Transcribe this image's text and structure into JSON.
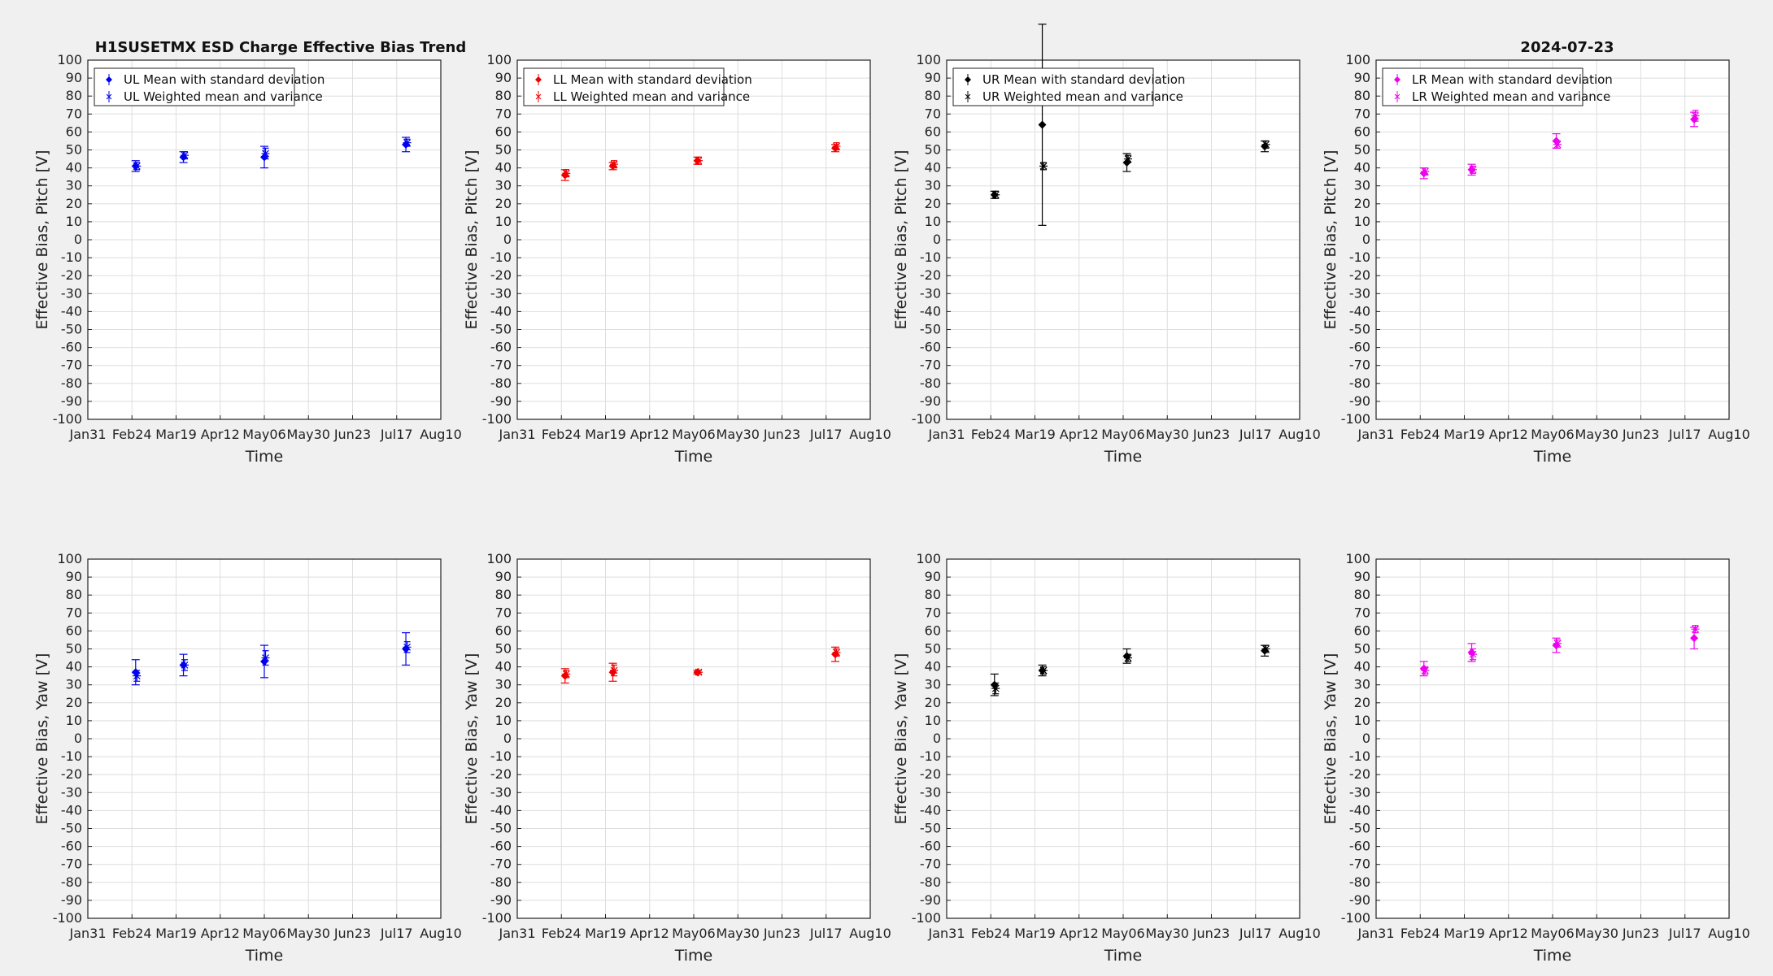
{
  "figure": {
    "title": "H1SUSETMX ESD Charge Effective Bias Trend",
    "date": "2024-07-23"
  },
  "colors": {
    "UL": "#0000ee",
    "LL": "#ee0000",
    "UR": "#000000",
    "LR": "#ee00ee"
  },
  "chart_data": [
    {
      "type": "scatter",
      "panel": "UL-pitch",
      "color": "#0000ee",
      "xlabel": "Time",
      "ylabel": "Effective Bias, Pitch [V]",
      "xlim": [
        "Jan31",
        "Aug10"
      ],
      "ylim": [
        -100,
        100
      ],
      "xticks": [
        "Jan31",
        "Feb24",
        "Mar19",
        "Apr12",
        "May06",
        "May30",
        "Jun23",
        "Jul17",
        "Aug10"
      ],
      "grid": true,
      "legend_position": "top-left",
      "series": [
        {
          "name": "UL Mean with standard deviation",
          "x": [
            "Feb26",
            "Mar23",
            "May06",
            "Jul22"
          ],
          "y": [
            41,
            46,
            46,
            53
          ],
          "err": [
            3,
            3,
            6,
            4
          ]
        },
        {
          "name": "UL Weighted mean and variance",
          "x": [
            "Feb26",
            "Mar23",
            "May06",
            "Jul22"
          ],
          "y": [
            41,
            47,
            48,
            54
          ],
          "err": [
            2,
            2,
            3,
            2
          ]
        }
      ]
    },
    {
      "type": "scatter",
      "panel": "LL-pitch",
      "color": "#ee0000",
      "xlabel": "Time",
      "ylabel": "Effective Bias, Pitch [V]",
      "xlim": [
        "Jan31",
        "Aug10"
      ],
      "ylim": [
        -100,
        100
      ],
      "xticks": [
        "Jan31",
        "Feb24",
        "Mar19",
        "Apr12",
        "May06",
        "May30",
        "Jun23",
        "Jul17",
        "Aug10"
      ],
      "grid": true,
      "legend_position": "top-left",
      "series": [
        {
          "name": "LL Mean with standard deviation",
          "x": [
            "Feb26",
            "Mar23",
            "May08",
            "Jul22"
          ],
          "y": [
            36,
            41,
            44,
            51
          ],
          "err": [
            3,
            2,
            2,
            2
          ]
        },
        {
          "name": "LL Weighted mean and variance",
          "x": [
            "Feb26",
            "Mar23",
            "May08",
            "Jul22"
          ],
          "y": [
            37,
            42,
            44,
            52
          ],
          "err": [
            2,
            2,
            2,
            2
          ]
        }
      ]
    },
    {
      "type": "scatter",
      "panel": "UR-pitch",
      "color": "#000000",
      "xlabel": "Time",
      "ylabel": "Effective Bias, Pitch [V]",
      "xlim": [
        "Jan31",
        "Aug10"
      ],
      "ylim": [
        -100,
        100
      ],
      "xticks": [
        "Jan31",
        "Feb24",
        "Mar19",
        "Apr12",
        "May06",
        "May30",
        "Jun23",
        "Jul17",
        "Aug10"
      ],
      "grid": true,
      "legend_position": "top-left",
      "series": [
        {
          "name": "UR Mean with standard deviation",
          "x": [
            "Feb26",
            "Mar23",
            "May08",
            "Jul22"
          ],
          "y": [
            25,
            64,
            43,
            52
          ],
          "err": [
            2,
            56,
            5,
            3
          ]
        },
        {
          "name": "UR Weighted mean and variance",
          "x": [
            "Feb26",
            "Mar23",
            "May08",
            "Jul22"
          ],
          "y": [
            25,
            41,
            45,
            53
          ],
          "err": [
            2,
            2,
            2,
            2
          ]
        }
      ]
    },
    {
      "type": "scatter",
      "panel": "LR-pitch",
      "color": "#ee00ee",
      "xlabel": "Time",
      "ylabel": "Effective Bias, Pitch [V]",
      "xlim": [
        "Jan31",
        "Aug10"
      ],
      "ylim": [
        -100,
        100
      ],
      "xticks": [
        "Jan31",
        "Feb24",
        "Mar19",
        "Apr12",
        "May06",
        "May30",
        "Jun23",
        "Jul17",
        "Aug10"
      ],
      "grid": true,
      "legend_position": "top-left",
      "series": [
        {
          "name": "LR Mean with standard deviation",
          "x": [
            "Feb26",
            "Mar23",
            "May08",
            "Jul22"
          ],
          "y": [
            37,
            39,
            55,
            67
          ],
          "err": [
            3,
            3,
            4,
            4
          ]
        },
        {
          "name": "LR Weighted mean and variance",
          "x": [
            "Feb26",
            "Mar23",
            "May08",
            "Jul22"
          ],
          "y": [
            38,
            39,
            53,
            69
          ],
          "err": [
            2,
            2,
            2,
            3
          ]
        }
      ]
    },
    {
      "type": "scatter",
      "panel": "UL-yaw",
      "color": "#0000ee",
      "xlabel": "Time",
      "ylabel": "Effective Bias, Yaw [V]",
      "xlim": [
        "Jan31",
        "Aug10"
      ],
      "ylim": [
        -100,
        100
      ],
      "xticks": [
        "Jan31",
        "Feb24",
        "Mar19",
        "Apr12",
        "May06",
        "May30",
        "Jun23",
        "Jul17",
        "Aug10"
      ],
      "grid": true,
      "series": [
        {
          "name": "UL Mean with standard deviation",
          "x": [
            "Feb26",
            "Mar23",
            "May06",
            "Jul22"
          ],
          "y": [
            37,
            41,
            43,
            50
          ],
          "err": [
            7,
            6,
            9,
            9
          ]
        },
        {
          "name": "UL Weighted mean and variance",
          "x": [
            "Feb26",
            "Mar23",
            "May06",
            "Jul22"
          ],
          "y": [
            35,
            41,
            45,
            51
          ],
          "err": [
            3,
            3,
            4,
            3
          ]
        }
      ]
    },
    {
      "type": "scatter",
      "panel": "LL-yaw",
      "color": "#ee0000",
      "xlabel": "Time",
      "ylabel": "Effective Bias, Yaw [V]",
      "xlim": [
        "Jan31",
        "Aug10"
      ],
      "ylim": [
        -100,
        100
      ],
      "xticks": [
        "Jan31",
        "Feb24",
        "Mar19",
        "Apr12",
        "May06",
        "May30",
        "Jun23",
        "Jul17",
        "Aug10"
      ],
      "grid": true,
      "series": [
        {
          "name": "LL Mean with standard deviation",
          "x": [
            "Feb26",
            "Mar23",
            "May08",
            "Jul22"
          ],
          "y": [
            35,
            37,
            37,
            47
          ],
          "err": [
            4,
            5,
            1,
            4
          ]
        },
        {
          "name": "LL Weighted mean and variance",
          "x": [
            "Feb26",
            "Mar23",
            "May08",
            "Jul22"
          ],
          "y": [
            36,
            38,
            37,
            48
          ],
          "err": [
            2,
            3,
            1,
            2
          ]
        }
      ]
    },
    {
      "type": "scatter",
      "panel": "UR-yaw",
      "color": "#000000",
      "xlabel": "Time",
      "ylabel": "Effective Bias, Yaw [V]",
      "xlim": [
        "Jan31",
        "Aug10"
      ],
      "ylim": [
        -100,
        100
      ],
      "xticks": [
        "Jan31",
        "Feb24",
        "Mar19",
        "Apr12",
        "May06",
        "May30",
        "Jun23",
        "Jul17",
        "Aug10"
      ],
      "grid": true,
      "series": [
        {
          "name": "UR Mean with standard deviation",
          "x": [
            "Feb26",
            "Mar23",
            "May08",
            "Jul22"
          ],
          "y": [
            30,
            38,
            46,
            49
          ],
          "err": [
            6,
            3,
            4,
            3
          ]
        },
        {
          "name": "UR Weighted mean and variance",
          "x": [
            "Feb26",
            "Mar23",
            "May08",
            "Jul22"
          ],
          "y": [
            28,
            38,
            45,
            50
          ],
          "err": [
            3,
            2,
            2,
            2
          ]
        }
      ]
    },
    {
      "type": "scatter",
      "panel": "LR-yaw",
      "color": "#ee00ee",
      "xlabel": "Time",
      "ylabel": "Effective Bias, Yaw [V]",
      "xlim": [
        "Jan31",
        "Aug10"
      ],
      "ylim": [
        -100,
        100
      ],
      "xticks": [
        "Jan31",
        "Feb24",
        "Mar19",
        "Apr12",
        "May06",
        "May30",
        "Jun23",
        "Jul17",
        "Aug10"
      ],
      "grid": true,
      "series": [
        {
          "name": "LR Mean with standard deviation",
          "x": [
            "Feb26",
            "Mar23",
            "May08",
            "Jul22"
          ],
          "y": [
            39,
            48,
            52,
            56
          ],
          "err": [
            4,
            5,
            4,
            6
          ]
        },
        {
          "name": "LR Weighted mean and variance",
          "x": [
            "Feb26",
            "Mar23",
            "May08",
            "Jul22"
          ],
          "y": [
            38,
            47,
            53,
            61
          ],
          "err": [
            2,
            3,
            2,
            2
          ]
        }
      ]
    }
  ]
}
